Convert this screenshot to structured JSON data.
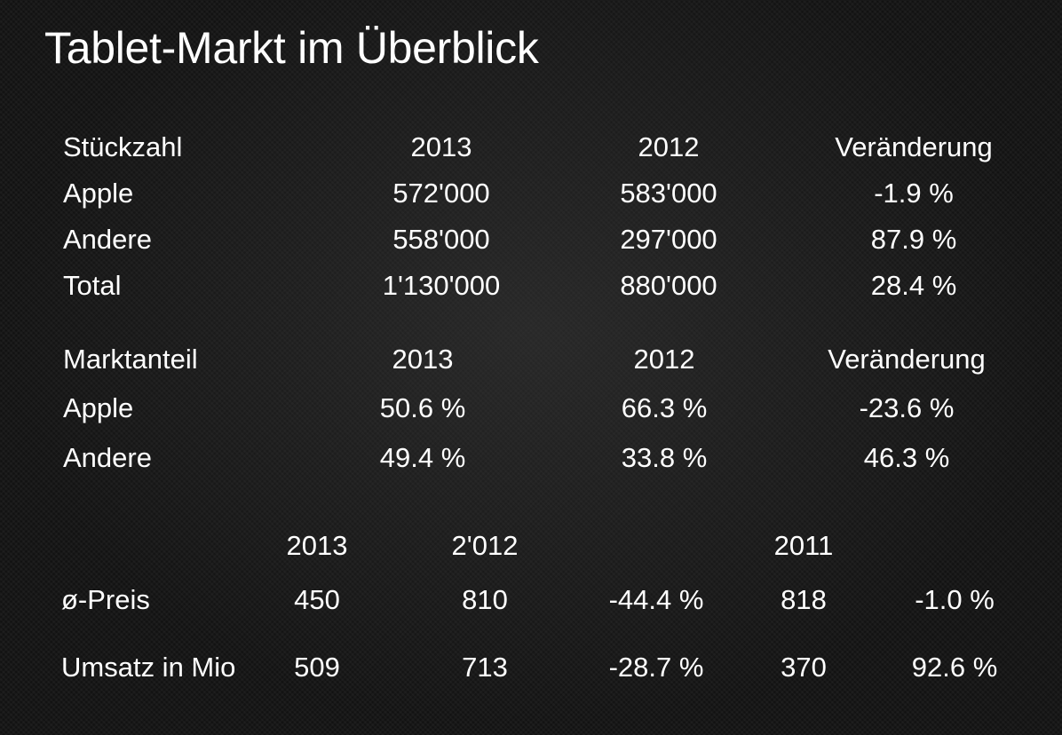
{
  "title": "Tablet-Markt im Überblick",
  "units_table": {
    "header": {
      "label": "Stückzahl",
      "col1": "2013",
      "col2": "2012",
      "col3": "Veränderung"
    },
    "rows": [
      {
        "label": "Apple",
        "col1": "572'000",
        "col2": "583'000",
        "col3": "-1.9 %"
      },
      {
        "label": "Andere",
        "col1": "558'000",
        "col2": "297'000",
        "col3": "87.9 %"
      },
      {
        "label": "Total",
        "col1": "1'130'000",
        "col2": "880'000",
        "col3": "28.4 %"
      }
    ]
  },
  "share_table": {
    "header": {
      "label": "Marktanteil",
      "col1": "2013",
      "col2": "2012",
      "col3": "Veränderung"
    },
    "rows": [
      {
        "label": "Apple",
        "col1": "50.6 %",
        "col2": "66.3 %",
        "col3": "-23.6 %"
      },
      {
        "label": "Andere",
        "col1": "49.4 %",
        "col2": "33.8 %",
        "col3": "46.3 %"
      }
    ]
  },
  "price_table": {
    "header": {
      "col1": "2013",
      "col2": "2'012",
      "col4": "2011"
    },
    "rows": [
      {
        "label": "ø-Preis",
        "col1": "450",
        "col2": "810",
        "col3": "-44.4 %",
        "col4": "818",
        "col5": "-1.0 %"
      },
      {
        "label": "Umsatz in Mio",
        "col1": "509",
        "col2": "713",
        "col3": "-28.7 %",
        "col4": "370",
        "col5": "92.6 %"
      }
    ]
  }
}
